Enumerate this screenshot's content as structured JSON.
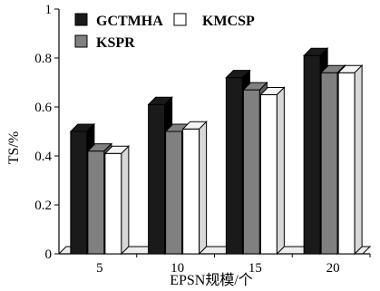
{
  "chart_data": {
    "type": "bar",
    "title": "",
    "xlabel": "EPSN规模/个",
    "ylabel": "TS/%",
    "categories": [
      "5",
      "10",
      "15",
      "20"
    ],
    "ylim": [
      0,
      1
    ],
    "yticks": [
      "0",
      "0.2",
      "0.4",
      "0.6",
      "0.8",
      "1"
    ],
    "series": [
      {
        "name": "GCTMHA",
        "values": [
          0.5,
          0.61,
          0.72,
          0.81
        ],
        "color": "#1a1a1a"
      },
      {
        "name": "KSPR",
        "values": [
          0.42,
          0.5,
          0.67,
          0.74
        ],
        "color": "#808080"
      },
      {
        "name": "KMCSP",
        "values": [
          0.41,
          0.51,
          0.65,
          0.74
        ],
        "color": "#ffffff"
      }
    ],
    "legend": {
      "placement": "top-left",
      "items": [
        "GCTMHA",
        "KMCSP",
        "KSPR"
      ]
    },
    "grid": false,
    "style": "3d-bar"
  }
}
